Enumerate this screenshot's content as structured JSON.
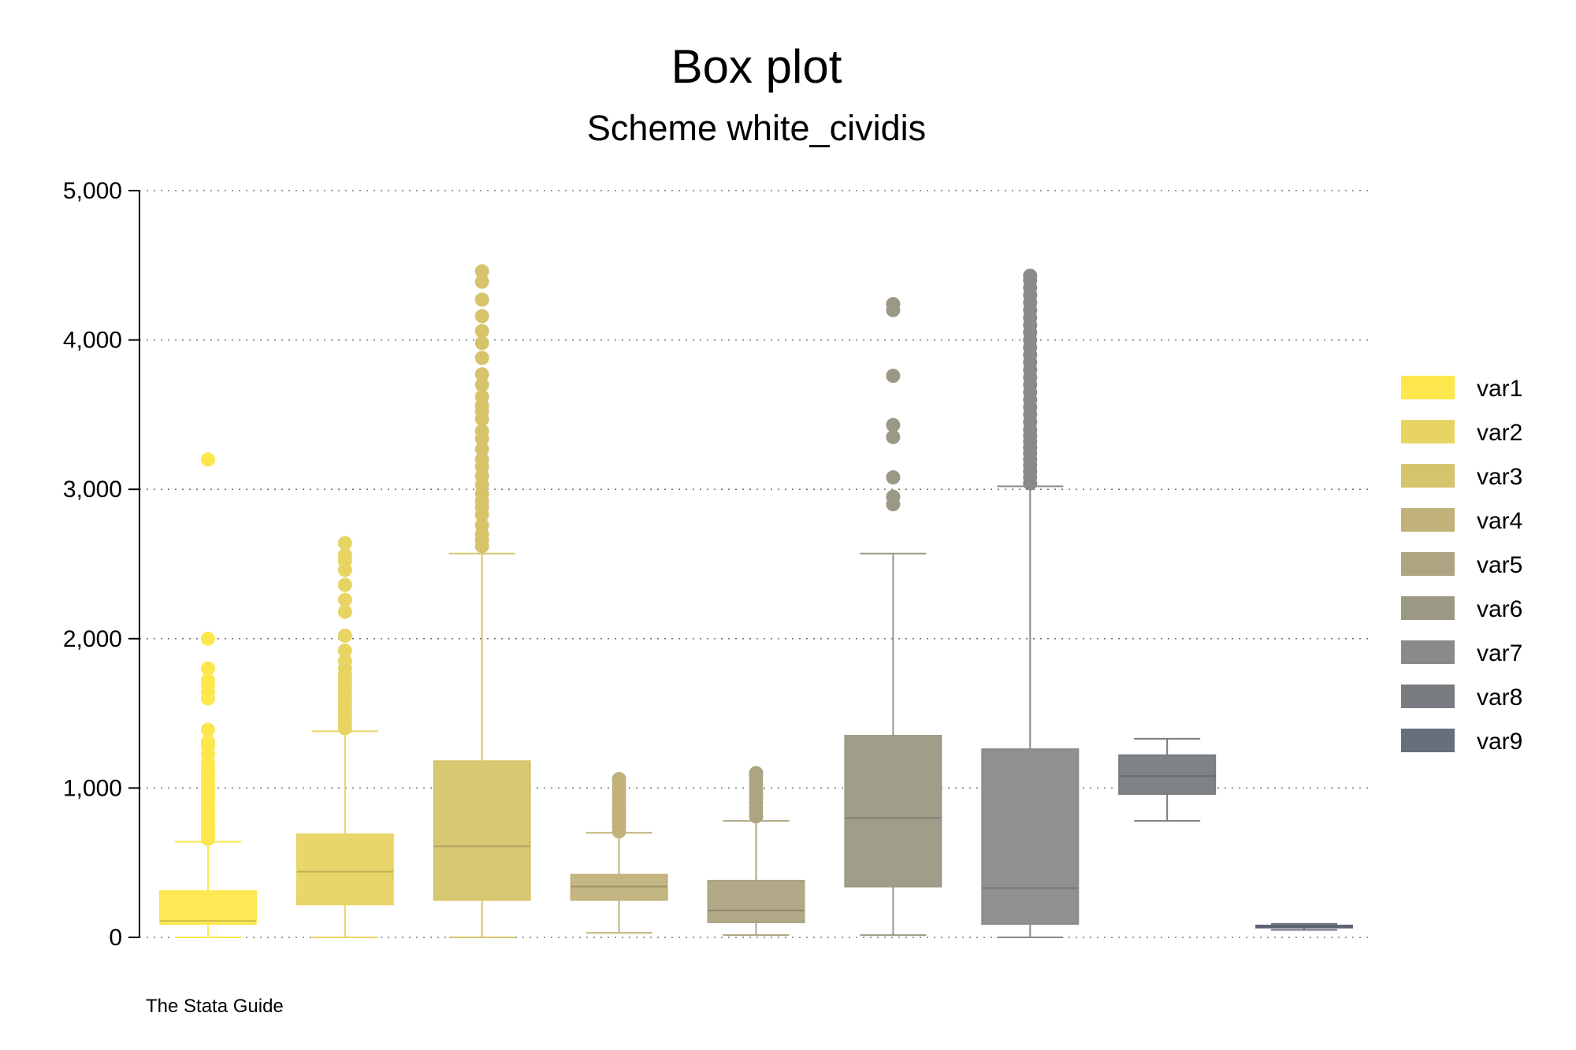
{
  "chart_data": {
    "type": "box",
    "title": "Box plot",
    "subtitle": "Scheme white_cividis",
    "note": "The Stata Guide",
    "ylim": [
      0,
      5000
    ],
    "y_ticks": [
      0,
      1000,
      2000,
      3000,
      4000,
      5000
    ],
    "y_tick_labels": [
      "0",
      "1,000",
      "2,000",
      "3,000",
      "4,000",
      "5,000"
    ],
    "grid": true,
    "legend_position": "right",
    "series": [
      {
        "name": "var1",
        "color": "#FDE74C",
        "min": 0,
        "q1": 90,
        "median": 110,
        "q3": 310,
        "max": 640,
        "outliers": [
          660,
          690,
          720,
          750,
          780,
          810,
          840,
          870,
          900,
          930,
          960,
          990,
          1020,
          1050,
          1080,
          1110,
          1140,
          1180,
          1230,
          1280,
          1310,
          1390,
          1600,
          1640,
          1690,
          1720,
          1800,
          2000,
          3200
        ]
      },
      {
        "name": "var2",
        "color": "#E8D463",
        "min": 0,
        "q1": 220,
        "median": 440,
        "q3": 690,
        "max": 1380,
        "outliers": [
          1400,
          1430,
          1460,
          1490,
          1520,
          1550,
          1580,
          1610,
          1640,
          1670,
          1700,
          1730,
          1760,
          1800,
          1850,
          1920,
          2020,
          2180,
          2260,
          2360,
          2460,
          2520,
          2560,
          2640
        ]
      },
      {
        "name": "var3",
        "color": "#D6C46C",
        "min": 0,
        "q1": 250,
        "median": 610,
        "q3": 1180,
        "max": 2570,
        "outliers": [
          2620,
          2660,
          2700,
          2760,
          2830,
          2880,
          2920,
          2970,
          3030,
          3090,
          3150,
          3200,
          3270,
          3340,
          3390,
          3470,
          3520,
          3560,
          3620,
          3700,
          3770,
          3880,
          3980,
          4060,
          4160,
          4270,
          4390,
          4460
        ]
      },
      {
        "name": "var4",
        "color": "#C1B27B",
        "min": 30,
        "q1": 250,
        "median": 340,
        "q3": 420,
        "max": 700,
        "outliers": [
          710,
          740,
          770,
          800,
          830,
          860,
          890,
          920,
          950,
          980,
          1010,
          1040,
          1060
        ]
      },
      {
        "name": "var5",
        "color": "#ADA481",
        "min": 15,
        "q1": 100,
        "median": 180,
        "q3": 380,
        "max": 780,
        "outliers": [
          810,
          840,
          870,
          900,
          930,
          960,
          990,
          1020,
          1050,
          1080,
          1100
        ]
      },
      {
        "name": "var6",
        "color": "#9B9885",
        "min": 15,
        "q1": 340,
        "median": 800,
        "q3": 1350,
        "max": 2570,
        "outliers": [
          2900,
          2950,
          3080,
          3350,
          3430,
          3760,
          4200,
          4240
        ]
      },
      {
        "name": "var7",
        "color": "#8A8A88",
        "min": 0,
        "q1": 90,
        "median": 330,
        "q3": 1260,
        "max": 3020,
        "outliers": [
          3040,
          3080,
          3120,
          3160,
          3200,
          3240,
          3280,
          3320,
          3360,
          3400,
          3450,
          3500,
          3550,
          3600,
          3650,
          3700,
          3750,
          3800,
          3850,
          3900,
          3950,
          4000,
          4050,
          4100,
          4150,
          4200,
          4250,
          4300,
          4350,
          4400,
          4430
        ]
      },
      {
        "name": "var8",
        "color": "#787B80",
        "min": 780,
        "q1": 960,
        "median": 1080,
        "q3": 1220,
        "max": 1330,
        "outliers": []
      },
      {
        "name": "var9",
        "color": "#676E7C",
        "min": 50,
        "q1": 65,
        "median": 72,
        "q3": 80,
        "max": 90,
        "outliers": []
      }
    ]
  }
}
